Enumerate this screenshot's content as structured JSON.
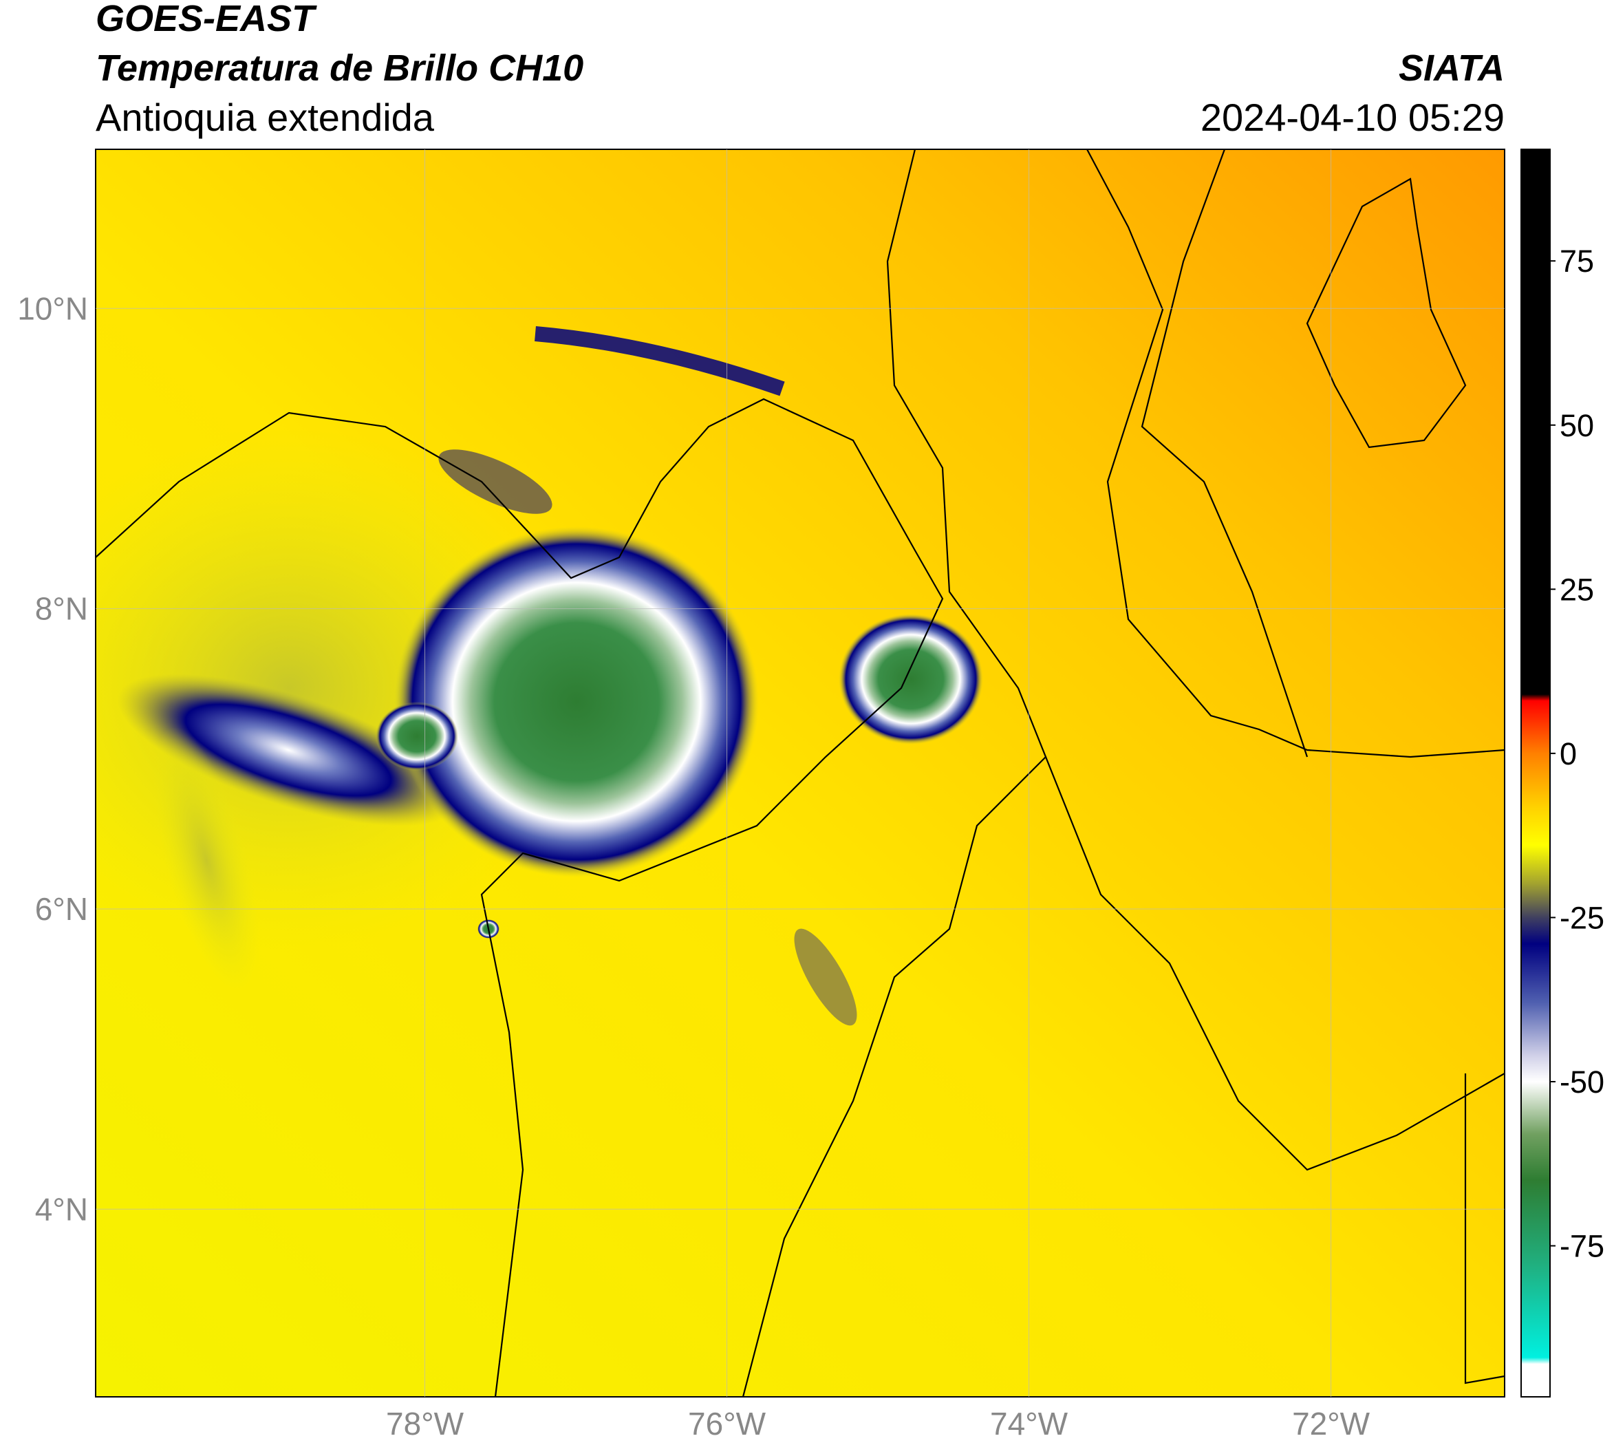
{
  "header": {
    "title": "GOES-EAST",
    "subtitle": "Temperatura de Brillo CH10",
    "region": "Antioquia extendida",
    "source": "SIATA",
    "datetime": "2024-04-10 05:29"
  },
  "map": {
    "lon_range": [
      -80.18,
      -70.85
    ],
    "lat_range": [
      2.75,
      11.06
    ],
    "lon_ticks": [
      {
        "value": -78,
        "label": "78°W"
      },
      {
        "value": -76,
        "label": "76°W"
      },
      {
        "value": -74,
        "label": "74°W"
      },
      {
        "value": -72,
        "label": "72°W"
      }
    ],
    "lat_ticks": [
      {
        "value": 10,
        "label": "10°N"
      },
      {
        "value": 8,
        "label": "8°N"
      },
      {
        "value": 6,
        "label": "6°N"
      },
      {
        "value": 4,
        "label": "4°N"
      }
    ],
    "grid": true
  },
  "colorbar": {
    "range": [
      -98,
      92
    ],
    "ticks": [
      75,
      50,
      25,
      0,
      -25,
      -50,
      -75
    ],
    "colors": [
      {
        "value": 92,
        "color": "#000000"
      },
      {
        "value": 9,
        "color": "#000000"
      },
      {
        "value": 8,
        "color": "#ff0000"
      },
      {
        "value": 0,
        "color": "#ff8000"
      },
      {
        "value": -8,
        "color": "#ffd000"
      },
      {
        "value": -14,
        "color": "#ffff00"
      },
      {
        "value": -20,
        "color": "#a0a030"
      },
      {
        "value": -25,
        "color": "#404060"
      },
      {
        "value": -29,
        "color": "#000080"
      },
      {
        "value": -38,
        "color": "#5060b0"
      },
      {
        "value": -46,
        "color": "#d0d0e8"
      },
      {
        "value": -50,
        "color": "#ffffff"
      },
      {
        "value": -58,
        "color": "#70a060"
      },
      {
        "value": -65,
        "color": "#2e7d32"
      },
      {
        "value": -78,
        "color": "#20b080"
      },
      {
        "value": -92,
        "color": "#00f0e0"
      },
      {
        "value": -93,
        "color": "#ffffff"
      },
      {
        "value": -98,
        "color": "#ffffff"
      }
    ]
  }
}
